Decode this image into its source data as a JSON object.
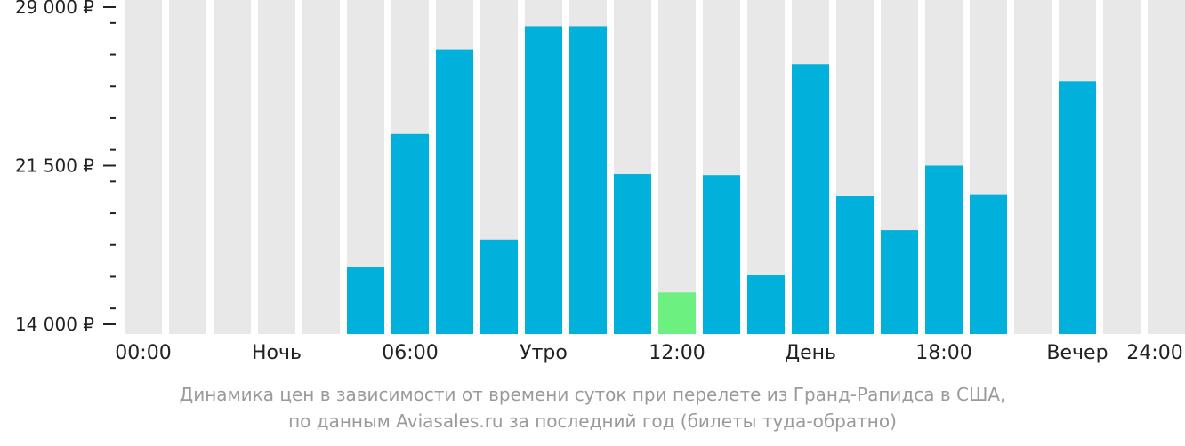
{
  "chart_data": {
    "type": "bar",
    "title": "",
    "xlabel": "",
    "ylabel": "",
    "ylim": [
      14000,
      29000
    ],
    "y_tick_labels": [
      {
        "value": 14000,
        "label": "14 000 ₽"
      },
      {
        "value": 21500,
        "label": "21 500 ₽"
      },
      {
        "value": 29000,
        "label": "29 000 ₽"
      }
    ],
    "y_minor_ticks": [
      14750,
      16250,
      17750,
      19250,
      20750,
      22250,
      23750,
      25250,
      26750,
      28250
    ],
    "x_tick_labels": [
      {
        "hour": 0,
        "label": "00:00"
      },
      {
        "hour": 3,
        "label": "Ночь"
      },
      {
        "hour": 6,
        "label": "06:00"
      },
      {
        "hour": 9,
        "label": "Утро"
      },
      {
        "hour": 12,
        "label": "12:00"
      },
      {
        "hour": 15,
        "label": "День"
      },
      {
        "hour": 18,
        "label": "18:00"
      },
      {
        "hour": 21,
        "label": "Вечер"
      },
      {
        "hour": 24,
        "label": "24:00"
      }
    ],
    "categories": [
      "0",
      "1",
      "2",
      "3",
      "4",
      "5",
      "6",
      "7",
      "8",
      "9",
      "10",
      "11",
      "12",
      "13",
      "14",
      "15",
      "16",
      "17",
      "18",
      "19",
      "20",
      "21",
      "22",
      "23"
    ],
    "values": [
      null,
      null,
      null,
      null,
      null,
      16700,
      23000,
      27000,
      18000,
      28100,
      28100,
      21100,
      15500,
      21050,
      16350,
      26300,
      20050,
      18450,
      21500,
      20150,
      null,
      25500,
      null,
      null
    ],
    "highlight_index": 12,
    "colors": {
      "bar": "#02B0DC",
      "highlight": "#6CF181",
      "empty_column": "#E8E8E8",
      "axis": "#222222"
    }
  },
  "caption": {
    "line1": "Динамика цен в зависимости от времени суток при перелете из Гранд-Рапидса в США,",
    "line2": "по данным Aviasales.ru за последний год (билеты туда-обратно)"
  }
}
